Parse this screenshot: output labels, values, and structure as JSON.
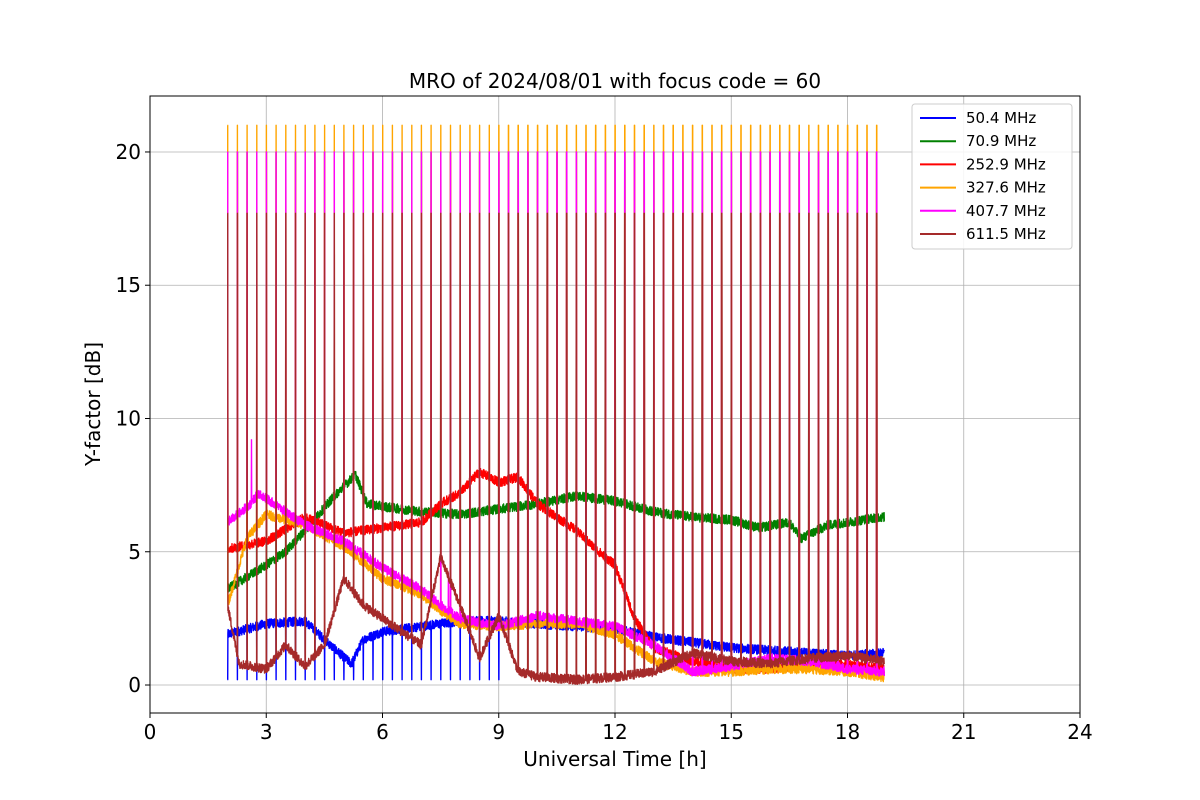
{
  "chart_data": {
    "type": "line",
    "title": "MRO of 2024/08/01 with focus code = 60",
    "xlabel": "Universal Time [h]",
    "ylabel": "Y-factor [dB]",
    "xlim": [
      0,
      24
    ],
    "ylim": [
      -1.05,
      22.1
    ],
    "xticks": [
      0,
      3,
      6,
      9,
      12,
      15,
      18,
      21,
      24
    ],
    "yticks": [
      0,
      5,
      10,
      15,
      20
    ],
    "grid": true,
    "legend_position": "top-right",
    "time_range_h": [
      2.0,
      18.95
    ],
    "calibration_pulse_period_h": 0.25,
    "series": [
      {
        "name": " 50.4 MHz",
        "color": "#0000ff",
        "baseline": [
          [
            2.0,
            1.9
          ],
          [
            3.0,
            2.3
          ],
          [
            4.0,
            2.4
          ],
          [
            4.8,
            1.3
          ],
          [
            5.2,
            0.8
          ],
          [
            5.5,
            1.7
          ],
          [
            6.0,
            2.0
          ],
          [
            7.0,
            2.2
          ],
          [
            8.0,
            2.4
          ],
          [
            9.0,
            2.4
          ],
          [
            10.0,
            2.3
          ],
          [
            11.0,
            2.2
          ],
          [
            12.0,
            2.1
          ],
          [
            13.0,
            1.8
          ],
          [
            14.0,
            1.6
          ],
          [
            15.0,
            1.4
          ],
          [
            16.0,
            1.3
          ],
          [
            17.0,
            1.2
          ],
          [
            18.0,
            1.1
          ],
          [
            18.9,
            1.2
          ]
        ],
        "pulse_peak": 0.2,
        "pulse_range_h": [
          2.0,
          9.2
        ]
      },
      {
        "name": " 70.9 MHz",
        "color": "#008000",
        "baseline": [
          [
            2.0,
            3.6
          ],
          [
            3.0,
            4.5
          ],
          [
            3.5,
            5.0
          ],
          [
            4.0,
            5.8
          ],
          [
            4.7,
            7.0
          ],
          [
            5.3,
            7.9
          ],
          [
            5.6,
            6.8
          ],
          [
            6.0,
            6.7
          ],
          [
            7.0,
            6.5
          ],
          [
            8.0,
            6.4
          ],
          [
            9.0,
            6.6
          ],
          [
            10.0,
            6.8
          ],
          [
            11.0,
            7.1
          ],
          [
            12.0,
            6.9
          ],
          [
            13.0,
            6.5
          ],
          [
            14.0,
            6.3
          ],
          [
            15.0,
            6.2
          ],
          [
            15.7,
            5.9
          ],
          [
            16.5,
            6.1
          ],
          [
            16.8,
            5.5
          ],
          [
            17.5,
            6.0
          ],
          [
            18.0,
            6.1
          ],
          [
            18.8,
            6.3
          ]
        ],
        "pulse_peak": 20.0
      },
      {
        "name": " 252.9 MHz",
        "color": "#ff0000",
        "baseline": [
          [
            2.0,
            5.1
          ],
          [
            3.0,
            5.4
          ],
          [
            4.0,
            6.3
          ],
          [
            5.0,
            5.7
          ],
          [
            6.0,
            5.9
          ],
          [
            7.0,
            6.1
          ],
          [
            7.5,
            6.8
          ],
          [
            8.0,
            7.2
          ],
          [
            8.5,
            8.0
          ],
          [
            9.0,
            7.6
          ],
          [
            9.5,
            7.8
          ],
          [
            10.0,
            6.8
          ],
          [
            11.0,
            5.8
          ],
          [
            11.5,
            5.1
          ],
          [
            12.0,
            4.5
          ],
          [
            12.5,
            2.5
          ],
          [
            13.0,
            1.4
          ],
          [
            14.0,
            0.9
          ],
          [
            15.0,
            0.6
          ],
          [
            16.0,
            0.6
          ],
          [
            17.0,
            0.8
          ],
          [
            18.0,
            0.8
          ],
          [
            18.9,
            0.6
          ]
        ],
        "pulse_peak": 20.0
      },
      {
        "name": " 327.6 MHz",
        "color": "#ffa500",
        "baseline": [
          [
            2.0,
            3.0
          ],
          [
            2.5,
            5.5
          ],
          [
            3.0,
            6.4
          ],
          [
            4.0,
            6.0
          ],
          [
            5.0,
            5.2
          ],
          [
            6.0,
            4.0
          ],
          [
            7.0,
            3.4
          ],
          [
            7.5,
            2.8
          ],
          [
            8.0,
            2.3
          ],
          [
            9.0,
            2.2
          ],
          [
            10.0,
            2.3
          ],
          [
            11.0,
            2.3
          ],
          [
            12.0,
            1.9
          ],
          [
            13.0,
            0.9
          ],
          [
            14.0,
            0.5
          ],
          [
            15.0,
            0.5
          ],
          [
            16.0,
            0.6
          ],
          [
            17.0,
            0.6
          ],
          [
            18.0,
            0.5
          ],
          [
            18.9,
            0.3
          ]
        ],
        "pulse_peak": 21.0
      },
      {
        "name": " 407.7 MHz",
        "color": "#ff00ff",
        "baseline": [
          [
            2.0,
            6.1
          ],
          [
            2.6,
            6.8
          ],
          [
            2.8,
            7.2
          ],
          [
            3.5,
            6.5
          ],
          [
            4.0,
            6.0
          ],
          [
            5.0,
            5.4
          ],
          [
            6.0,
            4.4
          ],
          [
            7.0,
            3.6
          ],
          [
            7.5,
            3.0
          ],
          [
            8.0,
            2.5
          ],
          [
            9.0,
            2.2
          ],
          [
            10.0,
            2.6
          ],
          [
            11.0,
            2.4
          ],
          [
            12.0,
            2.2
          ],
          [
            13.0,
            1.5
          ],
          [
            14.0,
            0.5
          ],
          [
            15.0,
            0.7
          ],
          [
            16.0,
            1.0
          ],
          [
            17.0,
            0.9
          ],
          [
            18.0,
            0.6
          ],
          [
            18.9,
            0.5
          ]
        ],
        "pulse_peak": 20.0,
        "spikes": [
          [
            2.62,
            9.2
          ],
          [
            7.7,
            4.2
          ]
        ]
      },
      {
        "name": " 611.5 MHz",
        "color": "#a52a2a",
        "baseline": [
          [
            2.0,
            3.0
          ],
          [
            2.3,
            0.8
          ],
          [
            3.0,
            0.6
          ],
          [
            3.5,
            1.5
          ],
          [
            4.0,
            0.7
          ],
          [
            4.5,
            1.5
          ],
          [
            5.0,
            4.0
          ],
          [
            5.5,
            3.0
          ],
          [
            6.0,
            2.5
          ],
          [
            6.5,
            2.0
          ],
          [
            7.0,
            1.5
          ],
          [
            7.5,
            4.8
          ],
          [
            8.0,
            3.0
          ],
          [
            8.5,
            1.0
          ],
          [
            9.0,
            2.6
          ],
          [
            9.5,
            0.5
          ],
          [
            10.0,
            0.3
          ],
          [
            11.0,
            0.2
          ],
          [
            12.0,
            0.3
          ],
          [
            13.0,
            0.5
          ],
          [
            14.0,
            1.2
          ],
          [
            15.0,
            0.9
          ],
          [
            16.0,
            0.8
          ],
          [
            17.0,
            1.0
          ],
          [
            18.0,
            1.1
          ],
          [
            18.9,
            0.9
          ]
        ],
        "pulse_peak": 17.7
      }
    ]
  }
}
